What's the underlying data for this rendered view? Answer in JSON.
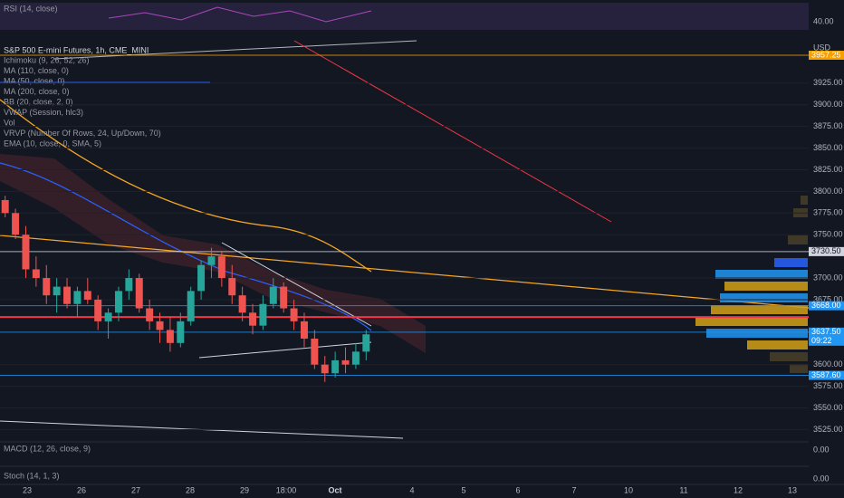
{
  "chart_data": {
    "type": "candlestick",
    "title": "S&P 500 E-mini Futures, 1h, CME_MINI",
    "indicators": [
      "Ichimoku (9, 26, 52, 26)",
      "MA (110, close, 0)",
      "MA (50, close, 0)",
      "MA (200, close, 0)",
      "BB (20, close, 2, 0)",
      "VWAP (Session, hlc3)",
      "Vol",
      "VRVP (Number Of Rows, 24, Up/Down, 70)",
      "EMA (10, close, 0, SMA, 5)"
    ],
    "currency": "USD",
    "up_color": "#26a69a",
    "down_color": "#ef5350",
    "ylim": [
      3515,
      3975
    ],
    "yticks": [
      {
        "value": 3925,
        "label": "3925.00"
      },
      {
        "value": 3900,
        "label": "3900.00"
      },
      {
        "value": 3875,
        "label": "3875.00"
      },
      {
        "value": 3850,
        "label": "3850.00"
      },
      {
        "value": 3825,
        "label": "3825.00"
      },
      {
        "value": 3800,
        "label": "3800.00"
      },
      {
        "value": 3775,
        "label": "3775.00"
      },
      {
        "value": 3750,
        "label": "3750.00"
      },
      {
        "value": 3700,
        "label": "3700.00"
      },
      {
        "value": 3675,
        "label": "3675.00"
      },
      {
        "value": 3600,
        "label": "3600.00"
      },
      {
        "value": 3575,
        "label": "3575.00"
      },
      {
        "value": 3550,
        "label": "3550.00"
      },
      {
        "value": 3525,
        "label": "3525.00"
      }
    ],
    "grid": true,
    "x_labels": [
      "23",
      "26",
      "27",
      "28",
      "29",
      "18:00",
      "Oct",
      "4",
      "5",
      "6",
      "7",
      "10",
      "11",
      "12",
      "13"
    ],
    "levels": [
      {
        "value": 3957.25,
        "label": "3957.25",
        "color": "#f59f00"
      },
      {
        "value": 3730.5,
        "label": "3730.50",
        "color": "#d1d4dc"
      },
      {
        "value": 3668,
        "label": "3668.00",
        "color": "#2196f3"
      },
      {
        "value": 3637.5,
        "label": "3637.50",
        "color": "#2196f3",
        "countdown": "09:22"
      },
      {
        "value": 3587.6,
        "label": "3587.60",
        "color": "#2196f3"
      }
    ],
    "red_level": {
      "value": 3655,
      "color": "#f23645"
    },
    "candles": [
      [
        3790,
        3795,
        3770,
        3775
      ],
      [
        3775,
        3780,
        3745,
        3750
      ],
      [
        3750,
        3760,
        3700,
        3710
      ],
      [
        3710,
        3725,
        3690,
        3700
      ],
      [
        3700,
        3715,
        3670,
        3680
      ],
      [
        3680,
        3700,
        3660,
        3690
      ],
      [
        3690,
        3700,
        3665,
        3670
      ],
      [
        3670,
        3690,
        3655,
        3685
      ],
      [
        3685,
        3700,
        3670,
        3675
      ],
      [
        3675,
        3680,
        3640,
        3650
      ],
      [
        3650,
        3665,
        3630,
        3660
      ],
      [
        3660,
        3690,
        3650,
        3685
      ],
      [
        3685,
        3710,
        3675,
        3700
      ],
      [
        3700,
        3705,
        3660,
        3665
      ],
      [
        3665,
        3675,
        3640,
        3650
      ],
      [
        3650,
        3660,
        3625,
        3640
      ],
      [
        3640,
        3655,
        3615,
        3625
      ],
      [
        3625,
        3660,
        3620,
        3650
      ],
      [
        3650,
        3690,
        3645,
        3685
      ],
      [
        3685,
        3720,
        3675,
        3715
      ],
      [
        3715,
        3735,
        3700,
        3725
      ],
      [
        3725,
        3730,
        3690,
        3700
      ],
      [
        3700,
        3715,
        3670,
        3680
      ],
      [
        3680,
        3690,
        3650,
        3660
      ],
      [
        3660,
        3670,
        3635,
        3645
      ],
      [
        3645,
        3680,
        3640,
        3670
      ],
      [
        3670,
        3700,
        3665,
        3690
      ],
      [
        3690,
        3695,
        3660,
        3665
      ],
      [
        3665,
        3675,
        3640,
        3650
      ],
      [
        3650,
        3660,
        3620,
        3630
      ],
      [
        3630,
        3640,
        3595,
        3600
      ],
      [
        3600,
        3610,
        3580,
        3590
      ],
      [
        3590,
        3615,
        3585,
        3605
      ],
      [
        3605,
        3620,
        3590,
        3600
      ],
      [
        3600,
        3625,
        3595,
        3615
      ],
      [
        3615,
        3640,
        3605,
        3635
      ]
    ],
    "panes": [
      {
        "name": "RSI (14, close)",
        "tick": {
          "value": 40,
          "label": "40.00"
        }
      },
      {
        "name": "MACD (12, 26, close, 9)",
        "tick": {
          "value": 0,
          "label": "0.00"
        }
      },
      {
        "name": "Stoch (14, 1, 3)",
        "tick": {
          "value": 0,
          "label": "0.00"
        }
      }
    ]
  }
}
